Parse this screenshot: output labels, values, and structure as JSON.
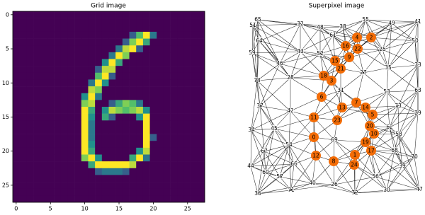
{
  "chart_data": [
    {
      "type": "heatmap",
      "title": "Grid image",
      "xlim": [
        -0.5,
        27.5
      ],
      "ylim": [
        27.5,
        -0.5
      ],
      "xticks": [
        0,
        5,
        10,
        15,
        20,
        25
      ],
      "yticks": [
        0,
        5,
        10,
        15,
        20,
        25
      ],
      "colormap": [
        "#440154",
        "#3b528b",
        "#21918c",
        "#5ec962",
        "#fde725"
      ],
      "z": [
        [
          0,
          0,
          0,
          0,
          0,
          0,
          0,
          0,
          0,
          0,
          0,
          0,
          0,
          0,
          0,
          0,
          0,
          0,
          0,
          0,
          0,
          0,
          0,
          0,
          0,
          0,
          0,
          0
        ],
        [
          0,
          0,
          0,
          0,
          0,
          0,
          0,
          0,
          0,
          0,
          0,
          0,
          0,
          0,
          0,
          0,
          0,
          0,
          0,
          0,
          0,
          0,
          0,
          0,
          0,
          0,
          0,
          0
        ],
        [
          0,
          0,
          0,
          0,
          0,
          0,
          0,
          0,
          0,
          0,
          0,
          0,
          0,
          0,
          0,
          0,
          0,
          0,
          0,
          0,
          0,
          0,
          0,
          0,
          0,
          0,
          0,
          0
        ],
        [
          0,
          0,
          0,
          0,
          0,
          0,
          0,
          0,
          0,
          0,
          0,
          0,
          0,
          0,
          0,
          0,
          0,
          0.3,
          0.7,
          1,
          0.4,
          0,
          0,
          0,
          0,
          0,
          0,
          0
        ],
        [
          0,
          0,
          0,
          0,
          0,
          0,
          0,
          0,
          0,
          0,
          0,
          0,
          0,
          0,
          0,
          0,
          0.3,
          0.8,
          1,
          0.6,
          0,
          0,
          0,
          0,
          0,
          0,
          0,
          0
        ],
        [
          0,
          0,
          0,
          0,
          0,
          0,
          0,
          0,
          0,
          0,
          0,
          0,
          0,
          0,
          0,
          0.4,
          0.9,
          1,
          0.3,
          0,
          0,
          0,
          0,
          0,
          0,
          0,
          0,
          0
        ],
        [
          0,
          0,
          0,
          0,
          0,
          0,
          0,
          0,
          0,
          0,
          0,
          0,
          0,
          0,
          0.4,
          1,
          0.8,
          0,
          0,
          0,
          0,
          0,
          0,
          0,
          0,
          0,
          0,
          0
        ],
        [
          0,
          0,
          0,
          0,
          0,
          0,
          0,
          0,
          0,
          0,
          0,
          0,
          0,
          0.5,
          1,
          0.6,
          0,
          0,
          0,
          0,
          0,
          0,
          0,
          0,
          0,
          0,
          0,
          0
        ],
        [
          0,
          0,
          0,
          0,
          0,
          0,
          0,
          0,
          0,
          0,
          0,
          0,
          0.3,
          0.9,
          0.9,
          0,
          0,
          0,
          0,
          0,
          0,
          0,
          0,
          0,
          0,
          0,
          0,
          0
        ],
        [
          0,
          0,
          0,
          0,
          0,
          0,
          0,
          0,
          0,
          0,
          0,
          0,
          0.7,
          1,
          0.3,
          0,
          0,
          0,
          0,
          0,
          0,
          0,
          0,
          0,
          0,
          0,
          0,
          0
        ],
        [
          0,
          0,
          0,
          0,
          0,
          0,
          0,
          0,
          0,
          0,
          0,
          0.4,
          1,
          0.5,
          0,
          0,
          0,
          0,
          0,
          0,
          0,
          0,
          0,
          0,
          0,
          0,
          0,
          0
        ],
        [
          0,
          0,
          0,
          0,
          0,
          0,
          0,
          0,
          0,
          0,
          0,
          0.9,
          0.8,
          0,
          0,
          0,
          0,
          0,
          0,
          0,
          0,
          0,
          0,
          0,
          0,
          0,
          0,
          0
        ],
        [
          0,
          0,
          0,
          0,
          0,
          0,
          0,
          0,
          0,
          0,
          0.5,
          1,
          0.4,
          0,
          0,
          0,
          0,
          0,
          0,
          0,
          0,
          0,
          0,
          0,
          0,
          0,
          0,
          0
        ],
        [
          0,
          0,
          0,
          0,
          0,
          0,
          0,
          0,
          0,
          0,
          0.8,
          0.9,
          0,
          0,
          0.3,
          0.6,
          0.8,
          0.7,
          0.4,
          0,
          0,
          0,
          0,
          0,
          0,
          0,
          0,
          0
        ],
        [
          0,
          0,
          0,
          0,
          0,
          0,
          0,
          0,
          0,
          0,
          1,
          0.6,
          0,
          0.5,
          0.9,
          0.8,
          0.7,
          0.8,
          0.9,
          0.5,
          0,
          0,
          0,
          0,
          0,
          0,
          0,
          0
        ],
        [
          0,
          0,
          0,
          0,
          0,
          0,
          0,
          0,
          0,
          0,
          1,
          0.5,
          0,
          0.6,
          0.3,
          0,
          0,
          0,
          0.5,
          1,
          0,
          0,
          0,
          0,
          0,
          0,
          0,
          0
        ],
        [
          0,
          0,
          0,
          0,
          0,
          0,
          0,
          0,
          0,
          0,
          1,
          0.4,
          0,
          0,
          0,
          0,
          0,
          0,
          0,
          1,
          0,
          0,
          0,
          0,
          0,
          0,
          0,
          0
        ],
        [
          0,
          0,
          0,
          0,
          0,
          0,
          0,
          0,
          0,
          0,
          1,
          0.4,
          0,
          0,
          0,
          0,
          0,
          0,
          0,
          1,
          0,
          0,
          0,
          0,
          0,
          0,
          0,
          0
        ],
        [
          0,
          0,
          0,
          0,
          0,
          0,
          0,
          0,
          0,
          0,
          1,
          0.4,
          0,
          0,
          0,
          0,
          0,
          0,
          0,
          1,
          0.3,
          0,
          0,
          0,
          0,
          0,
          0,
          0
        ],
        [
          0,
          0,
          0,
          0,
          0,
          0,
          0,
          0,
          0,
          0,
          1,
          0.5,
          0,
          0,
          0,
          0,
          0,
          0,
          0,
          1,
          0,
          0,
          0,
          0,
          0,
          0,
          0,
          0
        ],
        [
          0,
          0,
          0,
          0,
          0,
          0,
          0,
          0,
          0,
          0,
          1,
          0.6,
          0,
          0,
          0,
          0,
          0,
          0,
          0.5,
          0.9,
          0,
          0,
          0,
          0,
          0,
          0,
          0,
          0
        ],
        [
          0,
          0,
          0,
          0,
          0,
          0,
          0,
          0,
          0,
          0,
          0.8,
          1,
          0.5,
          0,
          0,
          0,
          0,
          0.6,
          1,
          0.4,
          0,
          0,
          0,
          0,
          0,
          0,
          0,
          0
        ],
        [
          0,
          0,
          0,
          0,
          0,
          0,
          0,
          0,
          0,
          0,
          0,
          0.6,
          1,
          1,
          1,
          1,
          1,
          0.9,
          0,
          0,
          0,
          0,
          0,
          0,
          0,
          0,
          0,
          0
        ],
        [
          0,
          0,
          0,
          0,
          0,
          0,
          0,
          0,
          0,
          0,
          0,
          0,
          0.3,
          0.4,
          0.4,
          0.4,
          0.3,
          0,
          0,
          0,
          0,
          0,
          0,
          0,
          0,
          0,
          0,
          0
        ],
        [
          0,
          0,
          0,
          0,
          0,
          0,
          0,
          0,
          0,
          0,
          0,
          0,
          0,
          0,
          0,
          0,
          0,
          0,
          0,
          0,
          0,
          0,
          0,
          0,
          0,
          0,
          0,
          0
        ],
        [
          0,
          0,
          0,
          0,
          0,
          0,
          0,
          0,
          0,
          0,
          0,
          0,
          0,
          0,
          0,
          0,
          0,
          0,
          0,
          0,
          0,
          0,
          0,
          0,
          0,
          0,
          0,
          0
        ],
        [
          0,
          0,
          0,
          0,
          0,
          0,
          0,
          0,
          0,
          0,
          0,
          0,
          0,
          0,
          0,
          0,
          0,
          0,
          0,
          0,
          0,
          0,
          0,
          0,
          0,
          0,
          0,
          0
        ],
        [
          0,
          0,
          0,
          0,
          0,
          0,
          0,
          0,
          0,
          0,
          0,
          0,
          0,
          0,
          0,
          0,
          0,
          0,
          0,
          0,
          0,
          0,
          0,
          0,
          0,
          0,
          0,
          0
        ]
      ]
    },
    {
      "type": "graph",
      "title": "Superpixel image",
      "highlight_color": "#f36c06",
      "other_color": "#000000",
      "edge_color": "#000000",
      "highlight_nodes": [
        "0",
        "1",
        "2",
        "3",
        "4",
        "5",
        "6",
        "7",
        "8",
        "9",
        "10",
        "11",
        "12",
        "13",
        "14",
        "15",
        "16",
        "17",
        "18",
        "19",
        "20",
        "21",
        "22",
        "23",
        "24"
      ],
      "other_nodes": [
        "25",
        "26",
        "27",
        "28",
        "29",
        "30",
        "31",
        "32",
        "33",
        "34",
        "35",
        "36",
        "37",
        "38",
        "39",
        "40",
        "41",
        "42",
        "43",
        "44",
        "45",
        "46",
        "47",
        "48",
        "49",
        "50",
        "51",
        "52",
        "53",
        "54",
        "55",
        "56",
        "57",
        "58",
        "59",
        "60",
        "61",
        "62",
        "63",
        "64",
        "65",
        "66",
        "67",
        "68",
        "69",
        "70",
        "71",
        "72",
        "73",
        "74"
      ]
    }
  ]
}
